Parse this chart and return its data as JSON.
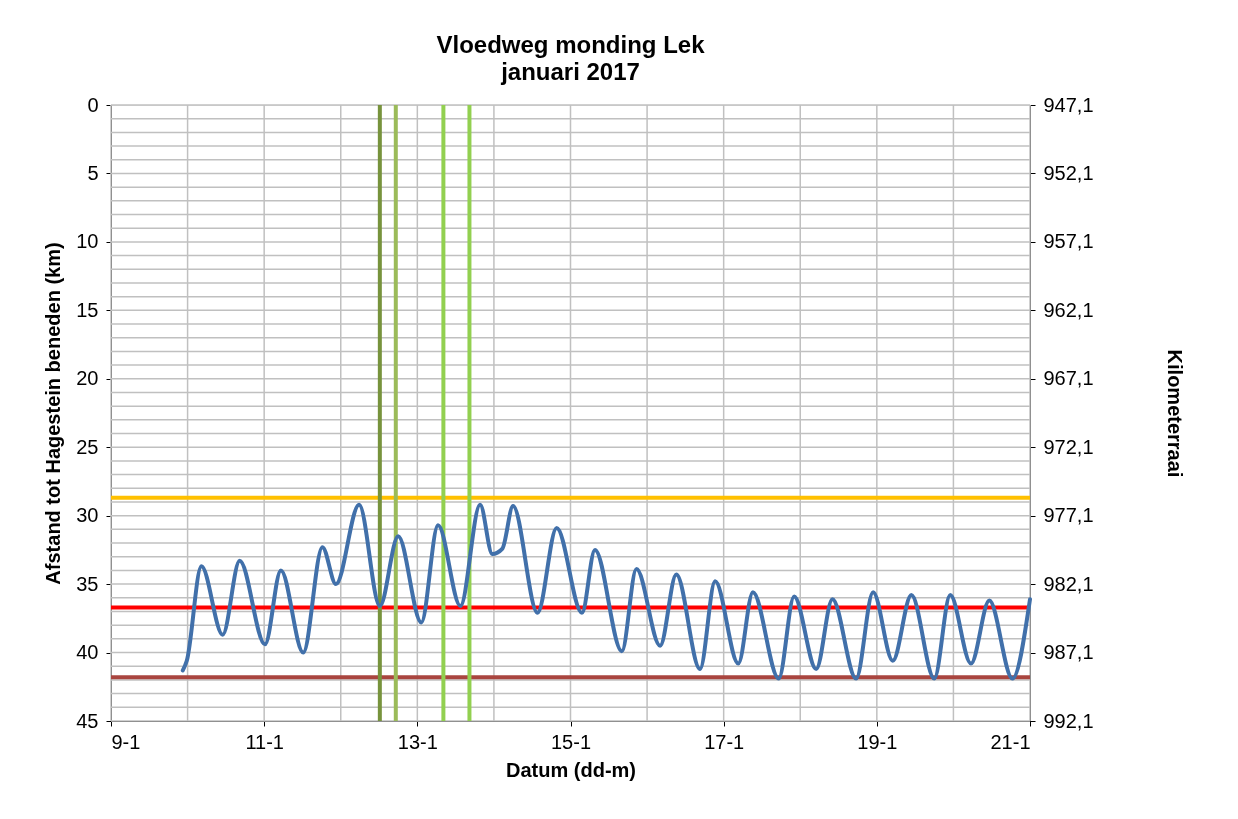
{
  "chart_data": {
    "type": "line",
    "title": "Vloedweg monding Lek",
    "subtitle": "januari 2017",
    "xlabel": "Datum (dd-m)",
    "ylabel": "Afstand tot Hagestein beneden (km)",
    "y2label": "Kilometerraai",
    "x": [
      "2017-01-09T22:30",
      "2017-01-09T23:45",
      "2017-01-10T04:20",
      "2017-01-10T11:00",
      "2017-01-10T16:20",
      "2017-01-11T00:15",
      "2017-01-11T05:15",
      "2017-01-11T12:15",
      "2017-01-11T18:15",
      "2017-01-11T22:30",
      "2017-01-12T05:45",
      "2017-01-12T12:15",
      "2017-01-12T18:00",
      "2017-01-13T01:15",
      "2017-01-13T06:30",
      "2017-01-13T13:30",
      "2017-01-13T19:40",
      "2017-01-13T23:30",
      "2017-01-14T02:40",
      "2017-01-14T06:00",
      "2017-01-14T13:40",
      "2017-01-14T19:40",
      "2017-01-15T03:35",
      "2017-01-15T07:40",
      "2017-01-15T16:05",
      "2017-01-15T20:40",
      "2017-01-16T04:05",
      "2017-01-16T09:10",
      "2017-01-16T16:35",
      "2017-01-16T21:20",
      "2017-01-17T04:35",
      "2017-01-17T09:10",
      "2017-01-17T17:15",
      "2017-01-17T22:05",
      "2017-01-18T05:00",
      "2017-01-18T10:05",
      "2017-01-18T17:30",
      "2017-01-18T22:50",
      "2017-01-19T05:00",
      "2017-01-19T10:50",
      "2017-01-19T18:00",
      "2017-01-19T23:00",
      "2017-01-20T05:30",
      "2017-01-20T11:15",
      "2017-01-20T18:30",
      "2017-01-21T00:00"
    ],
    "series": [
      {
        "color": "#4170aa",
        "values": [
          41.3,
          40.6,
          33.7,
          38.7,
          33.3,
          39.4,
          34.0,
          40.0,
          32.3,
          35.0,
          29.2,
          36.6,
          31.5,
          37.8,
          30.7,
          36.6,
          29.2,
          32.8,
          32.4,
          29.3,
          37.1,
          30.9,
          37.1,
          32.5,
          39.9,
          33.9,
          39.5,
          34.3,
          41.2,
          34.8,
          40.8,
          35.6,
          41.9,
          35.9,
          41.2,
          36.1,
          41.9,
          35.6,
          40.6,
          35.8,
          41.9,
          35.8,
          40.8,
          36.2,
          41.9,
          36.1
        ]
      }
    ],
    "xlim": [
      "2017-01-09T00:00",
      "2017-01-21T00:00"
    ],
    "xticks": [
      {
        "value": "2017-01-09T00:00",
        "label": "9-1"
      },
      {
        "value": "2017-01-11T00:00",
        "label": "11-1"
      },
      {
        "value": "2017-01-13T00:00",
        "label": "13-1"
      },
      {
        "value": "2017-01-15T00:00",
        "label": "15-1"
      },
      {
        "value": "2017-01-17T00:00",
        "label": "17-1"
      },
      {
        "value": "2017-01-19T00:00",
        "label": "19-1"
      },
      {
        "value": "2017-01-21T00:00",
        "label": "21-1"
      }
    ],
    "ylim": [
      45,
      0
    ],
    "yticks": [
      0,
      5,
      10,
      15,
      20,
      25,
      30,
      35,
      40,
      45
    ],
    "y2lim": [
      992.1,
      947.1
    ],
    "y2ticks": [
      {
        "value": 947.1,
        "label": "947,1"
      },
      {
        "value": 952.1,
        "label": "952,1"
      },
      {
        "value": 957.1,
        "label": "957,1"
      },
      {
        "value": 962.1,
        "label": "962,1"
      },
      {
        "value": 967.1,
        "label": "967,1"
      },
      {
        "value": 972.1,
        "label": "972,1"
      },
      {
        "value": 977.1,
        "label": "977,1"
      },
      {
        "value": 982.1,
        "label": "982,1"
      },
      {
        "value": 987.1,
        "label": "987,1"
      },
      {
        "value": 992.1,
        "label": "992,1"
      }
    ],
    "ref_lines": [
      {
        "axis": "y",
        "value": 28.7,
        "color": "#ffc000"
      },
      {
        "axis": "y",
        "value": 36.7,
        "color": "#ff0000"
      },
      {
        "axis": "y",
        "value": 41.8,
        "color": "#a9453f"
      },
      {
        "axis": "x",
        "value": "2017-01-12T12:15",
        "color": "#77933c"
      },
      {
        "axis": "x",
        "value": "2017-01-12T17:15",
        "color": "#9bbb59"
      },
      {
        "axis": "x",
        "value": "2017-01-13T08:10",
        "color": "#92d050"
      },
      {
        "axis": "x",
        "value": "2017-01-13T16:20",
        "color": "#92d050"
      }
    ],
    "grid": true,
    "marker": "none",
    "line_style": "solid"
  }
}
